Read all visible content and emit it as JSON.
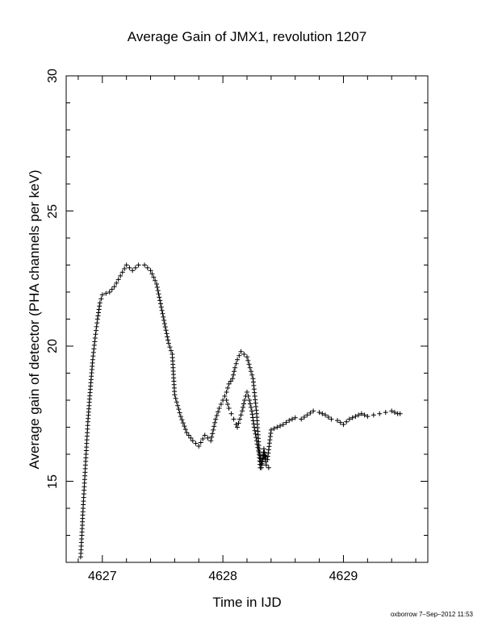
{
  "chart_data": {
    "type": "scatter",
    "title": "Average Gain of JMX1, revolution 1207",
    "xlabel": "Time in IJD",
    "ylabel": "Average gain of detector (PHA channels per keV)",
    "xlim": [
      4626.7,
      4629.7
    ],
    "ylim": [
      12.0,
      30.0
    ],
    "xticks": [
      4627,
      4628,
      4629
    ],
    "yticks": [
      15,
      20,
      25,
      30
    ],
    "marker": "+",
    "grid": false,
    "series": [
      {
        "color": "#000000",
        "x": [
          4626.82,
          4626.83,
          4626.84,
          4626.85,
          4626.86,
          4626.87,
          4626.88,
          4626.9,
          4626.92,
          4626.94,
          4626.96,
          4626.98,
          4627.0,
          4627.03,
          4627.06,
          4627.1,
          4627.15,
          4627.2,
          4627.25,
          4627.3,
          4627.35,
          4627.4,
          4627.45,
          4627.5,
          4627.55,
          4627.58,
          4627.6,
          4627.65,
          4627.7,
          4627.75,
          4627.8,
          4627.85,
          4627.9,
          4627.94,
          4627.97,
          4628.0,
          4628.03,
          4628.05,
          4628.08,
          4628.1,
          4628.12,
          4628.15,
          4628.2,
          4628.25,
          4628.28,
          4628.3,
          4628.32,
          4628.34,
          4628.37,
          4628.4,
          4628.45,
          4628.5,
          4628.55,
          4628.6,
          4628.65,
          4628.7,
          4628.75,
          4628.8,
          4628.85,
          4628.9,
          4628.95,
          4629.0,
          4629.05,
          4629.1,
          4629.15,
          4629.2,
          4629.25,
          4629.3,
          4629.35,
          4629.4,
          4629.45,
          4629.47
        ],
        "y": [
          12.2,
          13.0,
          14.0,
          14.8,
          15.6,
          16.4,
          17.2,
          18.4,
          19.5,
          20.3,
          21.0,
          21.6,
          21.9,
          21.95,
          22.0,
          22.2,
          22.6,
          23.0,
          22.8,
          23.0,
          23.0,
          22.8,
          22.3,
          21.2,
          20.1,
          19.7,
          18.2,
          17.4,
          16.8,
          16.5,
          16.3,
          16.7,
          16.5,
          17.3,
          17.7,
          18.0,
          18.3,
          18.6,
          18.8,
          19.2,
          19.5,
          19.8,
          19.6,
          18.8,
          17.5,
          16.2,
          15.6,
          16.0,
          15.8,
          16.9,
          17.0,
          17.1,
          17.25,
          17.35,
          17.3,
          17.45,
          17.6,
          17.55,
          17.45,
          17.3,
          17.25,
          17.1,
          17.3,
          17.4,
          17.5,
          17.4,
          17.45,
          17.5,
          17.55,
          17.6,
          17.5,
          17.5
        ]
      },
      {
        "color": "#000000",
        "x": [
          4628.03,
          4628.05,
          4628.07,
          4628.09,
          4628.11,
          4628.12,
          4628.14,
          4628.16,
          4628.18,
          4628.2,
          4628.22,
          4628.24,
          4628.26,
          4628.28,
          4628.3,
          4628.31,
          4628.32,
          4628.33,
          4628.34,
          4628.36,
          4628.38
        ],
        "y": [
          18.0,
          17.7,
          17.5,
          17.3,
          17.1,
          17.0,
          17.3,
          17.6,
          18.0,
          18.3,
          18.0,
          17.6,
          17.0,
          16.5,
          16.0,
          15.5,
          15.5,
          15.8,
          16.2,
          15.6,
          15.5
        ]
      }
    ]
  },
  "footer": "oxborrow  7–Sep–2012 11:53"
}
